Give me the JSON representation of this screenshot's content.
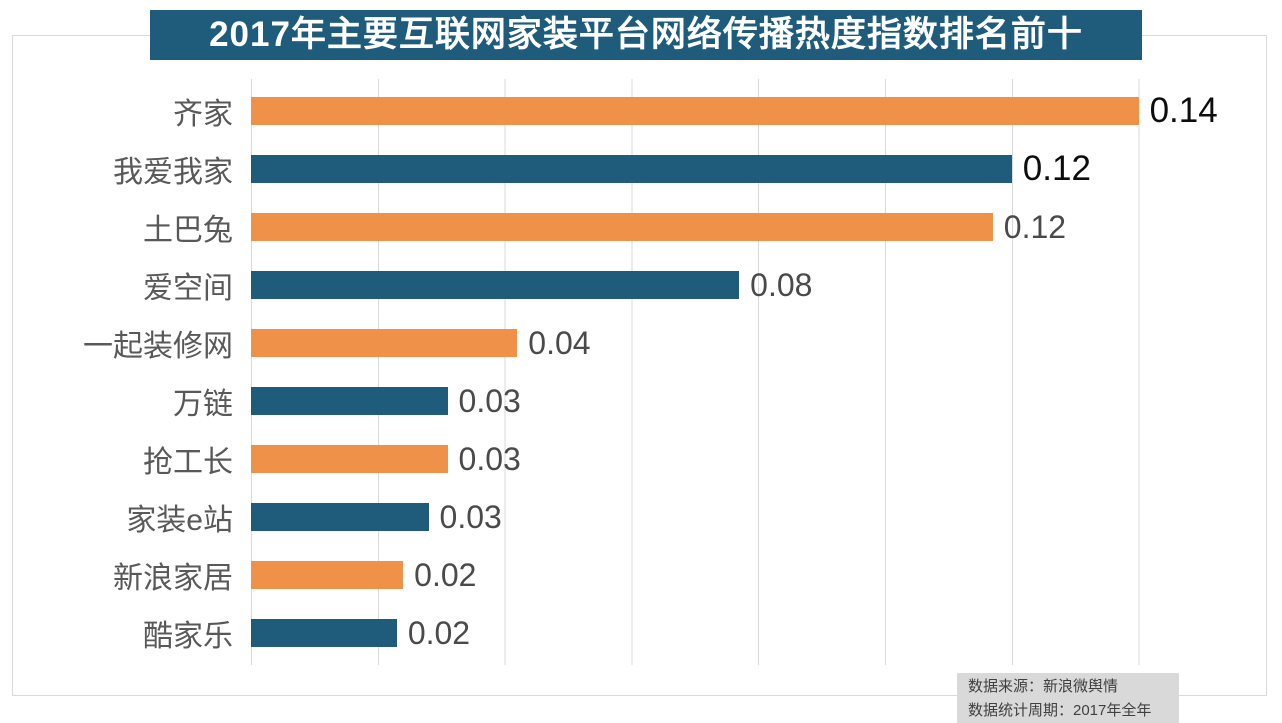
{
  "title": "2017年主要互联网家装平台网络传播热度指数排名前十",
  "source": {
    "line1": "数据来源：新浪微舆情",
    "line2": "数据统计周期：2017年全年"
  },
  "colors": {
    "title_bg": "#1f5c7c",
    "bar_orange": "#f0914a",
    "bar_blue": "#1f5c7c",
    "gridline": "#d9d9d9",
    "category_text": "#595959",
    "value_text": "#4a4a4a",
    "value_text_emphasis": "#0d0d0d",
    "source_bg": "#d9d9d9",
    "source_text": "#404040"
  },
  "chart_data": {
    "type": "bar",
    "orientation": "horizontal",
    "title": "2017年主要互联网家装平台网络传播热度指数排名前十",
    "categories": [
      "齐家",
      "我爱我家",
      "土巴兔",
      "爱空间",
      "一起装修网",
      "万链",
      "抢工长",
      "家装e站",
      "新浪家居",
      "酷家乐"
    ],
    "values": [
      0.14,
      0.12,
      0.12,
      0.08,
      0.04,
      0.03,
      0.03,
      0.03,
      0.02,
      0.02
    ],
    "value_labels": [
      "0.14",
      "0.12",
      "0.12",
      "0.08",
      "0.04",
      "0.03",
      "0.03",
      "0.03",
      "0.02",
      "0.02"
    ],
    "bar_lengths_measured": [
      0.14,
      0.12,
      0.117,
      0.077,
      0.042,
      0.031,
      0.031,
      0.028,
      0.024,
      0.023
    ],
    "bar_colors": [
      "#f0914a",
      "#1f5c7c",
      "#f0914a",
      "#1f5c7c",
      "#f0914a",
      "#1f5c7c",
      "#f0914a",
      "#1f5c7c",
      "#f0914a",
      "#1f5c7c"
    ],
    "value_label_emphasis": [
      true,
      true,
      false,
      false,
      false,
      false,
      false,
      false,
      false,
      false
    ],
    "xlabel": "",
    "ylabel": "",
    "xlim": [
      0,
      0.16
    ],
    "x_tick_interval": 0.02,
    "grid": "vertical-gridlines-no-tick-labels",
    "legend": "none"
  }
}
